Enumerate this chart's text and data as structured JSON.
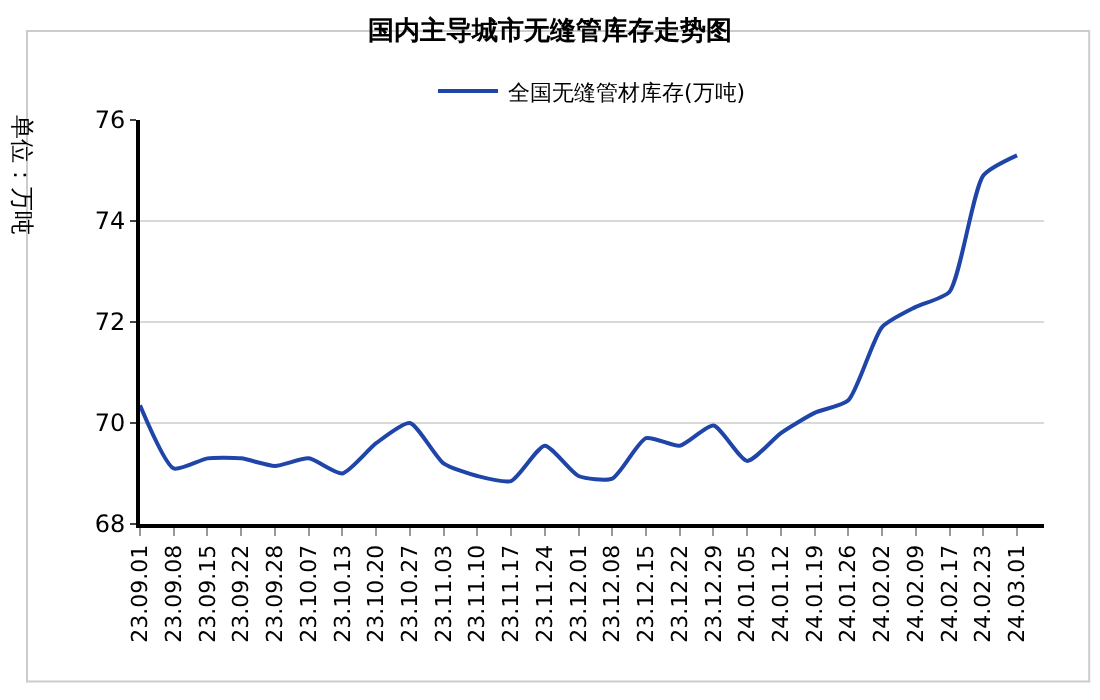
{
  "chart_data": {
    "type": "line",
    "title": "国内主导城市无缝管库存走势图",
    "ylabel": "单位：万吨",
    "categories": [
      "23.09.01",
      "23.09.08",
      "23.09.15",
      "23.09.22",
      "23.09.28",
      "23.10.07",
      "23.10.13",
      "23.10.20",
      "23.10.27",
      "23.11.03",
      "23.11.10",
      "23.11.17",
      "23.11.24",
      "23.12.01",
      "23.12.08",
      "23.12.15",
      "23.12.22",
      "23.12.29",
      "24.01.05",
      "24.01.12",
      "24.01.19",
      "24.01.26",
      "24.02.02",
      "24.02.09",
      "24.02.17",
      "24.02.23",
      "24.03.01"
    ],
    "series": [
      {
        "name": "全国无缝管材库存(万吨)",
        "color": "#1f45a8",
        "values": [
          70.35,
          69.1,
          69.3,
          69.3,
          69.15,
          69.3,
          69.0,
          69.6,
          70.0,
          69.2,
          68.95,
          68.85,
          69.55,
          68.95,
          68.9,
          69.7,
          69.55,
          69.95,
          69.25,
          69.8,
          70.2,
          70.45,
          71.9,
          72.3,
          72.6,
          74.9,
          75.3
        ]
      }
    ],
    "ylim": [
      68,
      76
    ],
    "yticks": [
      68,
      70,
      72,
      74,
      76
    ],
    "grid": "y",
    "legend": "top",
    "marker": "none",
    "line_style": "solid"
  }
}
